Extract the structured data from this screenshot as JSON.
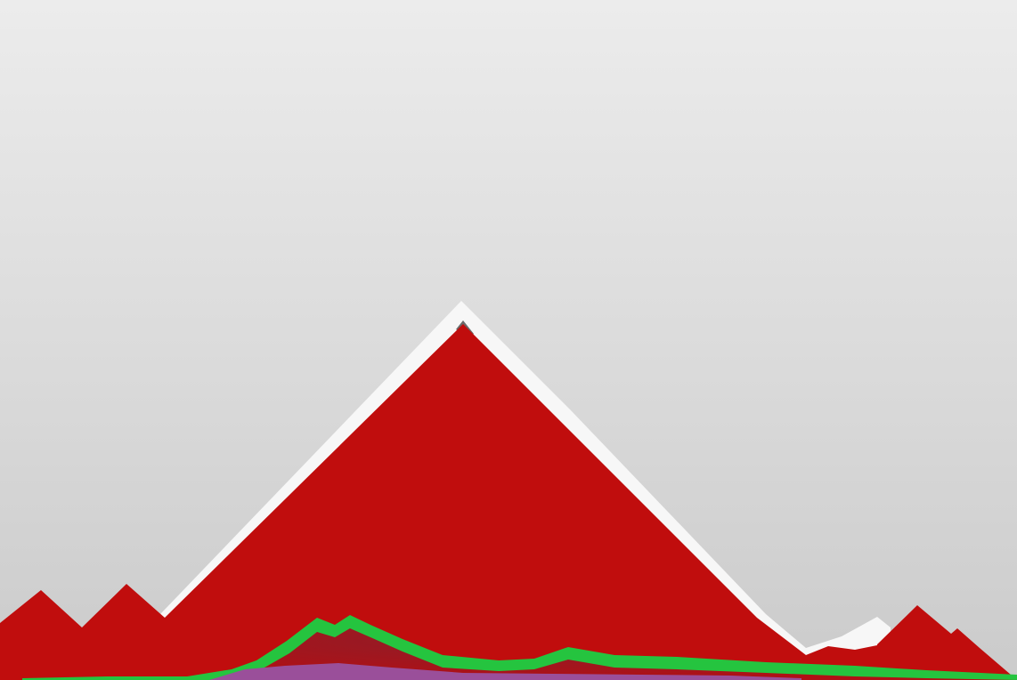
{
  "scene": {
    "colors": {
      "sky_top": "#ececec",
      "sky_bottom": "#cbcbcb",
      "mountain_red": "#c00d0d",
      "mountain_red_dark": "#8e0808",
      "ridge_white": "#f7f7f7",
      "shadow_gray": "#6a6a6a",
      "green_band": "#25c43f",
      "purple_band": "#9a4f9a",
      "maroon_band": "#7a2a35"
    },
    "layers": [
      "sky",
      "snow-ridge",
      "red-mountains",
      "maroon-hill",
      "green-band",
      "purple-band"
    ]
  }
}
